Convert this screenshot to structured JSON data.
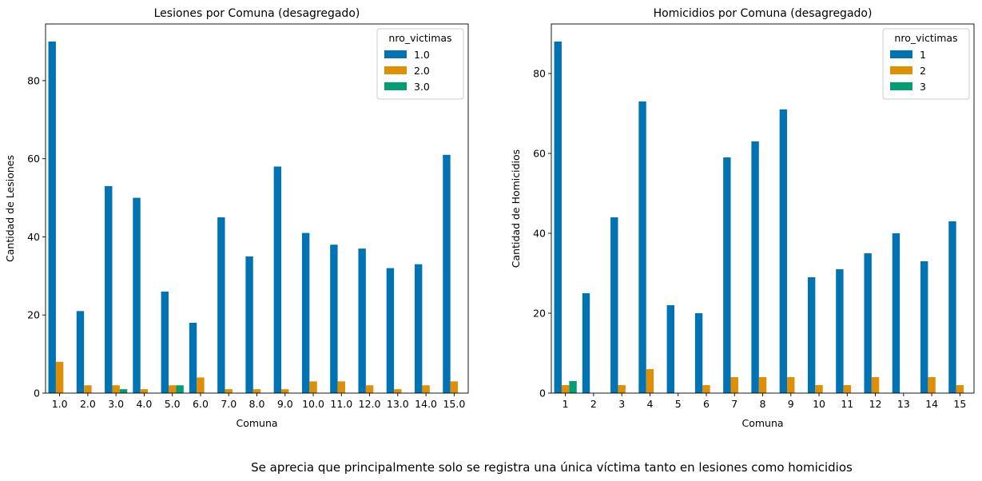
{
  "caption": "Se aprecia que principalmente solo se registra una única víctima tanto en lesiones como homicidios",
  "chart_data": [
    {
      "type": "bar",
      "title": "Lesiones por Comuna (desagregado)",
      "xlabel": "Comuna",
      "ylabel": "Cantidad de Lesiones",
      "categories": [
        "1.0",
        "2.0",
        "3.0",
        "4.0",
        "5.0",
        "6.0",
        "7.0",
        "8.0",
        "9.0",
        "10.0",
        "11.0",
        "12.0",
        "13.0",
        "14.0",
        "15.0"
      ],
      "ylim": [
        0,
        94.5
      ],
      "yticks": [
        0,
        20,
        40,
        60,
        80
      ],
      "legend": {
        "title": "nro_victimas",
        "placement": "top-right"
      },
      "series": [
        {
          "name": "1.0",
          "color": "#0173b2",
          "values": [
            90,
            21,
            53,
            50,
            26,
            18,
            45,
            35,
            58,
            41,
            38,
            37,
            32,
            33,
            61
          ]
        },
        {
          "name": "2.0",
          "color": "#de8f05",
          "values": [
            8,
            2,
            2,
            1,
            2,
            4,
            1,
            1,
            1,
            3,
            3,
            2,
            1,
            2,
            3
          ]
        },
        {
          "name": "3.0",
          "color": "#029e73",
          "values": [
            0,
            0,
            1,
            0,
            2,
            0,
            0,
            0,
            0,
            0,
            0,
            0,
            0,
            0,
            0
          ]
        }
      ]
    },
    {
      "type": "bar",
      "title": "Homicidios por Comuna (desagregado)",
      "xlabel": "Comuna",
      "ylabel": "Cantidad de Homicidios",
      "categories": [
        "1",
        "2",
        "3",
        "4",
        "5",
        "6",
        "7",
        "8",
        "9",
        "10",
        "11",
        "12",
        "13",
        "14",
        "15"
      ],
      "ylim": [
        0,
        92.4
      ],
      "yticks": [
        0,
        20,
        40,
        60,
        80
      ],
      "legend": {
        "title": "nro_victimas",
        "placement": "top-right"
      },
      "series": [
        {
          "name": "1",
          "color": "#0173b2",
          "values": [
            88,
            25,
            44,
            73,
            22,
            20,
            59,
            63,
            71,
            29,
            31,
            35,
            40,
            33,
            43
          ]
        },
        {
          "name": "2",
          "color": "#de8f05",
          "values": [
            2,
            0,
            2,
            6,
            0,
            2,
            4,
            4,
            4,
            2,
            2,
            4,
            0,
            4,
            2
          ]
        },
        {
          "name": "3",
          "color": "#029e73",
          "values": [
            3,
            0,
            0,
            0,
            0,
            0,
            0,
            0,
            0,
            0,
            0,
            0,
            0,
            0,
            0
          ]
        }
      ]
    }
  ]
}
